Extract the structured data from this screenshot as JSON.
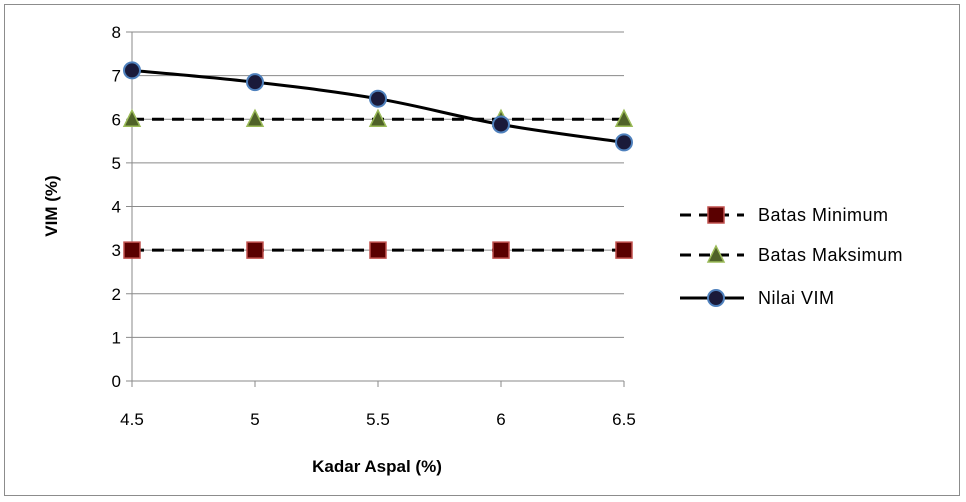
{
  "chart_data": {
    "type": "line",
    "x": [
      4.5,
      5,
      5.5,
      6,
      6.5
    ],
    "x_tick_labels": [
      "4.5",
      "5",
      "5.5",
      "6",
      "6.5"
    ],
    "y_tick_labels": [
      "0",
      "1",
      "2",
      "3",
      "4",
      "5",
      "6",
      "7",
      "8"
    ],
    "ylim": [
      0,
      8
    ],
    "xlabel": "Kadar Aspal (%)",
    "ylabel": "VIM  (%)",
    "grid": "horizontal",
    "legend_position": "right",
    "series": [
      {
        "name": "Batas Minimum",
        "values": [
          3,
          3,
          3,
          3,
          3
        ],
        "line": "dashed",
        "marker": "square",
        "marker_color": "#5a0000",
        "marker_edge": "#c0504d"
      },
      {
        "name": "Batas Maksimum",
        "values": [
          6,
          6,
          6,
          6,
          6
        ],
        "line": "dashed",
        "marker": "triangle",
        "marker_color": "#4f6228",
        "marker_edge": "#9bbb59"
      },
      {
        "name": "Nilai VIM",
        "values": [
          7.12,
          6.85,
          6.47,
          5.88,
          5.47
        ],
        "line": "solid",
        "marker": "circle",
        "marker_color": "#1a1a3a",
        "marker_edge": "#4f81bd"
      }
    ]
  }
}
